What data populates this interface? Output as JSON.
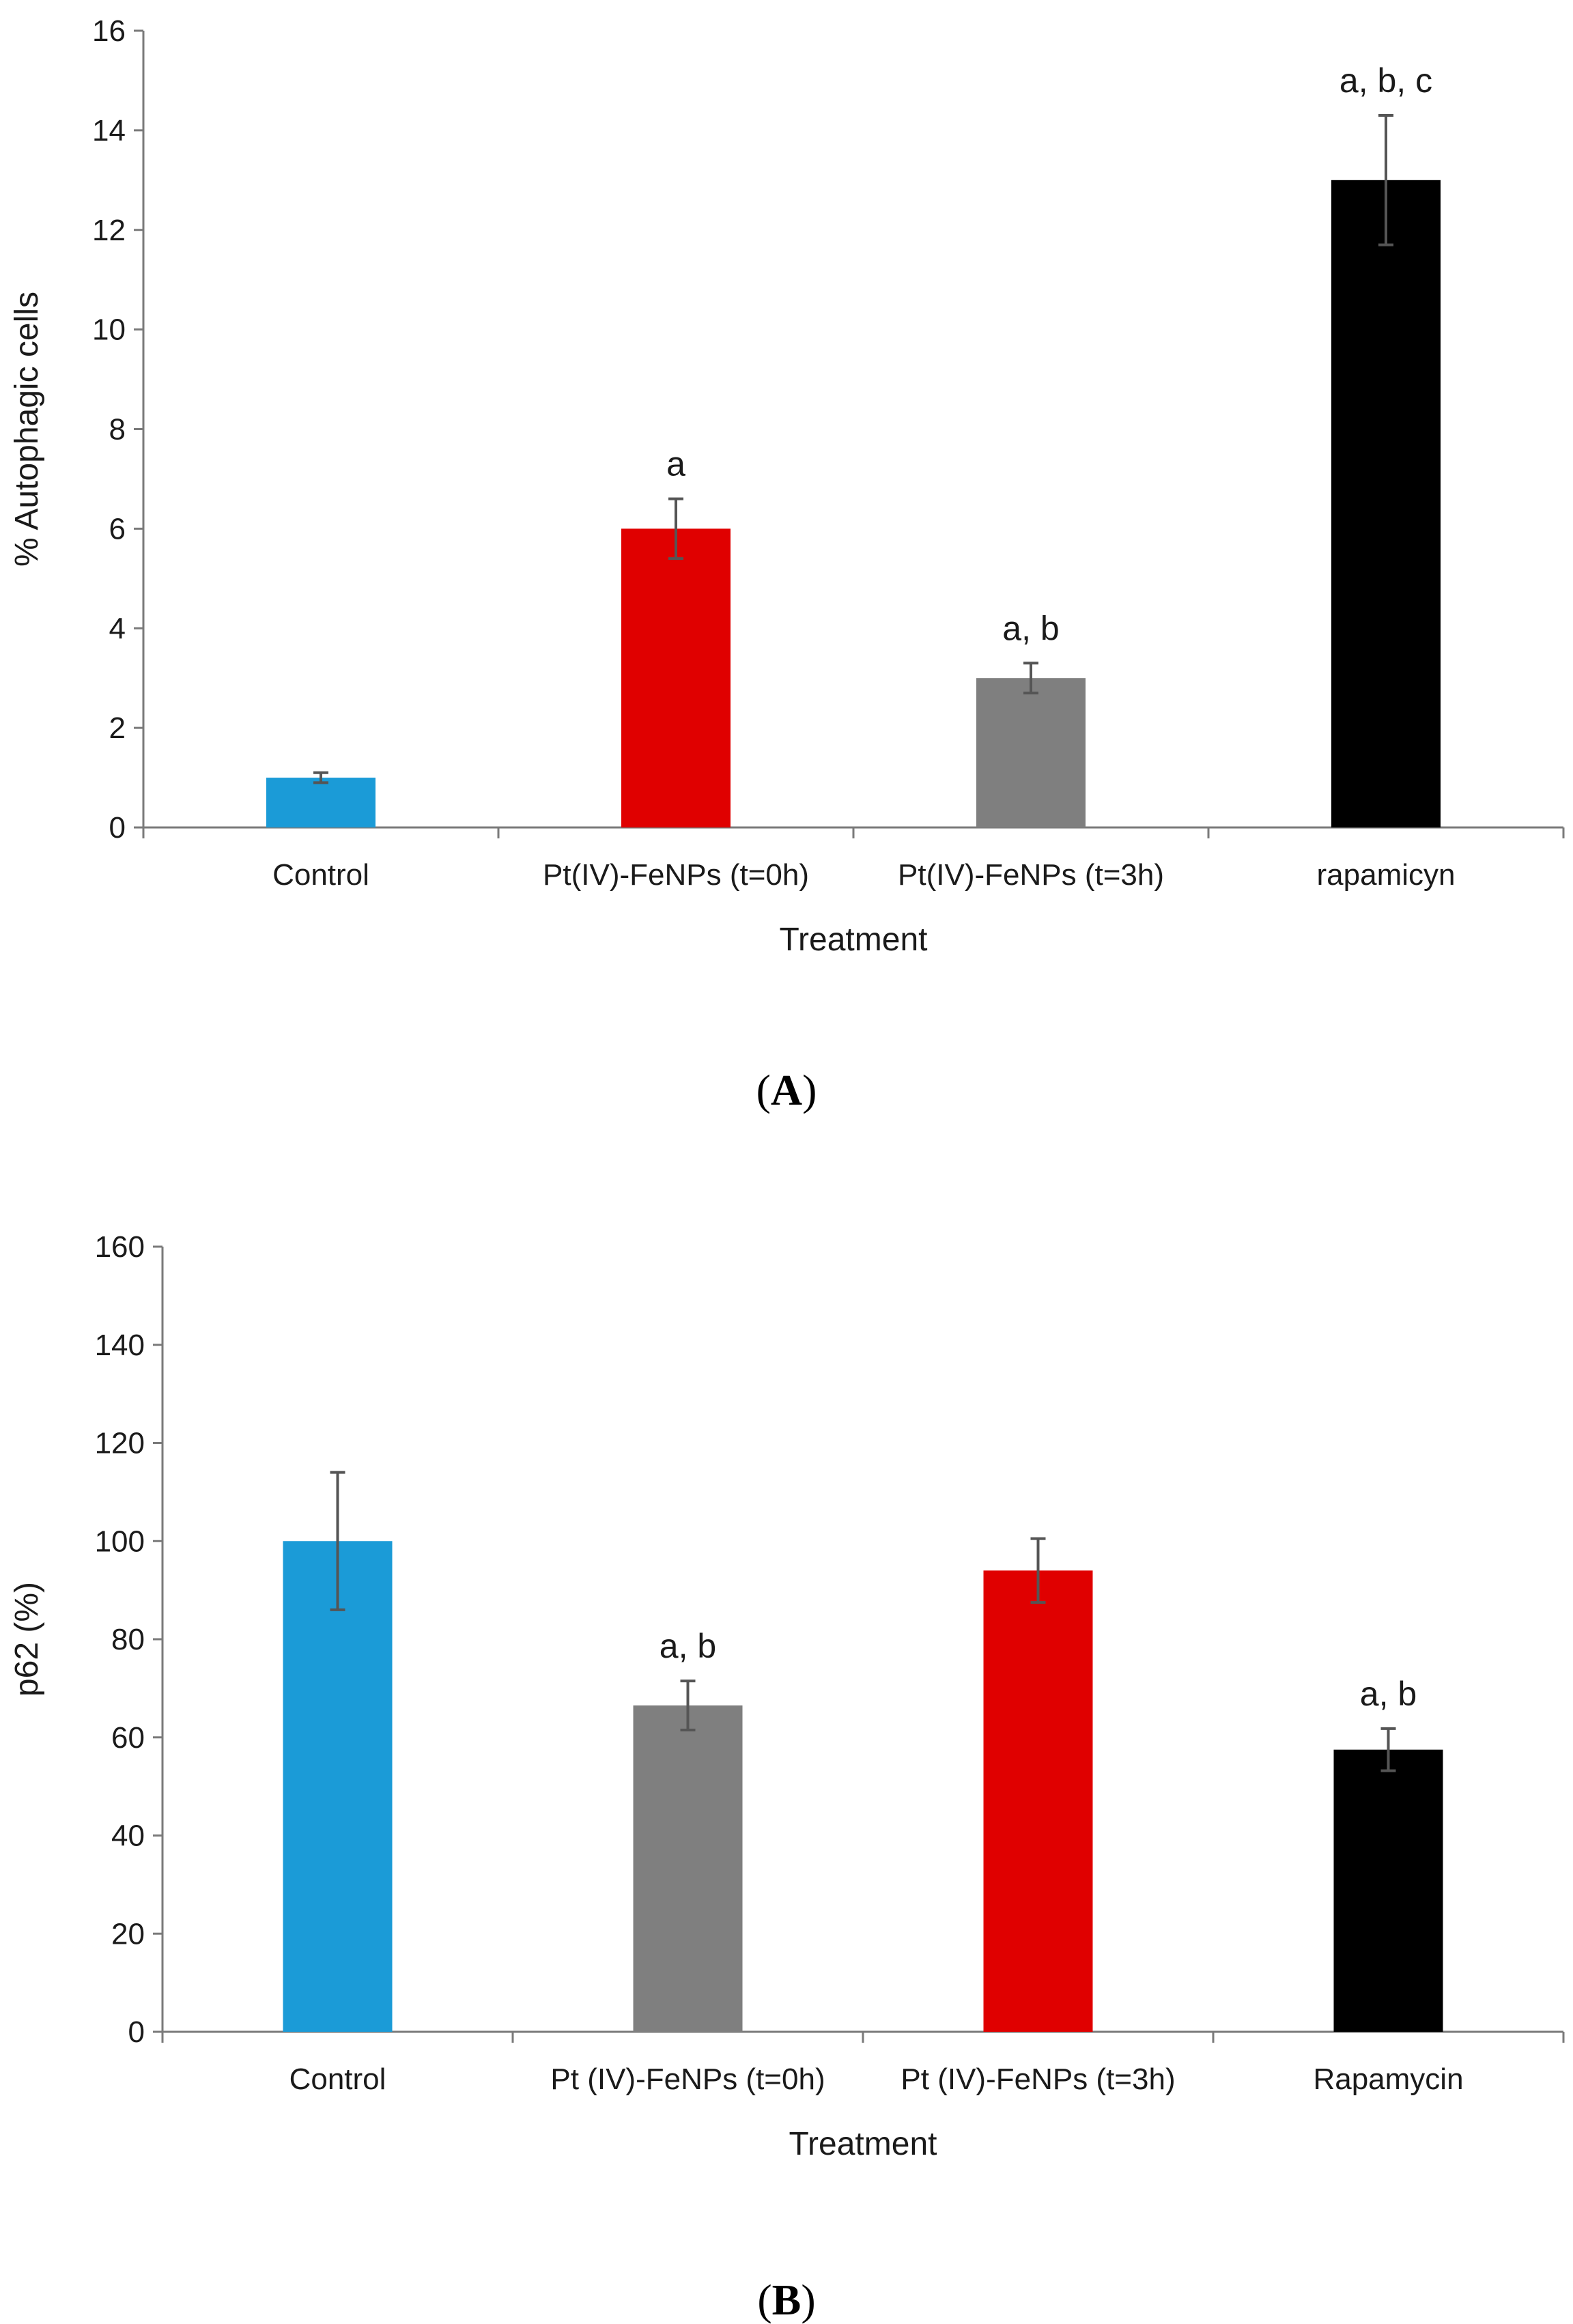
{
  "chart_data": [
    {
      "type": "bar",
      "panel_label": "A",
      "categories": [
        "Control",
        "Pt(IV)-FeNPs (t=0h)",
        "Pt(IV)-FeNPs (t=3h)",
        "rapamicyn"
      ],
      "values": [
        1,
        6,
        3,
        13
      ],
      "errors": [
        0.1,
        0.6,
        0.3,
        1.3
      ],
      "colors": [
        "#1b9bd7",
        "#e00000",
        "#7f7f7f",
        "#000000"
      ],
      "annotations": [
        "",
        "a",
        "a, b",
        "a, b, c"
      ],
      "xlabel": "Treatment",
      "ylabel": "% Autophagic cells",
      "ylim": [
        0,
        16
      ],
      "yticks": [
        0,
        2,
        4,
        6,
        8,
        10,
        12,
        14,
        16
      ],
      "grid": false
    },
    {
      "type": "bar",
      "panel_label": "B",
      "categories": [
        "Control",
        "Pt (IV)-FeNPs (t=0h)",
        "Pt (IV)-FeNPs (t=3h)",
        "Rapamycin"
      ],
      "values": [
        100,
        66.5,
        94,
        57.5
      ],
      "errors": [
        14,
        5,
        6.5,
        4.3
      ],
      "colors": [
        "#1b9bd7",
        "#7f7f7f",
        "#e00000",
        "#000000"
      ],
      "annotations": [
        "",
        "a, b",
        "",
        "a, b"
      ],
      "xlabel": "Treatment",
      "ylabel": "p62 (%)",
      "ylim": [
        0,
        160
      ],
      "yticks": [
        0,
        20,
        40,
        60,
        80,
        100,
        120,
        140,
        160
      ],
      "grid": false
    }
  ]
}
